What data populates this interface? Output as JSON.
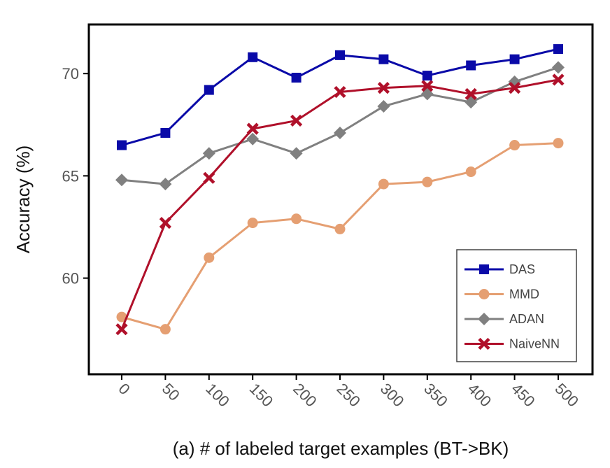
{
  "chart_data": {
    "type": "line",
    "title": "",
    "xlabel": "(a)  # of labeled target examples (BT->BK)",
    "ylabel": "Accuracy (%)",
    "categories": [
      "0",
      "50",
      "100",
      "150",
      "200",
      "250",
      "300",
      "350",
      "400",
      "450",
      "500"
    ],
    "ylim": [
      55.3,
      72.4
    ],
    "yticks": [
      60,
      65,
      70
    ],
    "grid": false,
    "legend_position": "bottom-right",
    "series": [
      {
        "name": "DAS",
        "color": "#0a0aa8",
        "marker": "square",
        "values": [
          66.5,
          67.1,
          69.2,
          70.8,
          69.8,
          70.9,
          70.7,
          69.9,
          70.4,
          70.7,
          71.2
        ]
      },
      {
        "name": "MMD",
        "color": "#e59f72",
        "marker": "circle",
        "values": [
          58.1,
          57.5,
          61.0,
          62.7,
          62.9,
          62.4,
          64.6,
          64.7,
          65.2,
          66.5,
          66.6
        ]
      },
      {
        "name": "ADAN",
        "color": "#808080",
        "marker": "diamond",
        "values": [
          64.8,
          64.6,
          66.1,
          66.8,
          66.1,
          67.1,
          68.4,
          69.0,
          68.6,
          69.6,
          70.3
        ]
      },
      {
        "name": "NaiveNN",
        "color": "#b0102a",
        "marker": "x",
        "values": [
          57.5,
          62.7,
          64.9,
          67.3,
          67.7,
          69.1,
          69.3,
          69.4,
          69.0,
          69.3,
          69.7
        ]
      }
    ]
  }
}
